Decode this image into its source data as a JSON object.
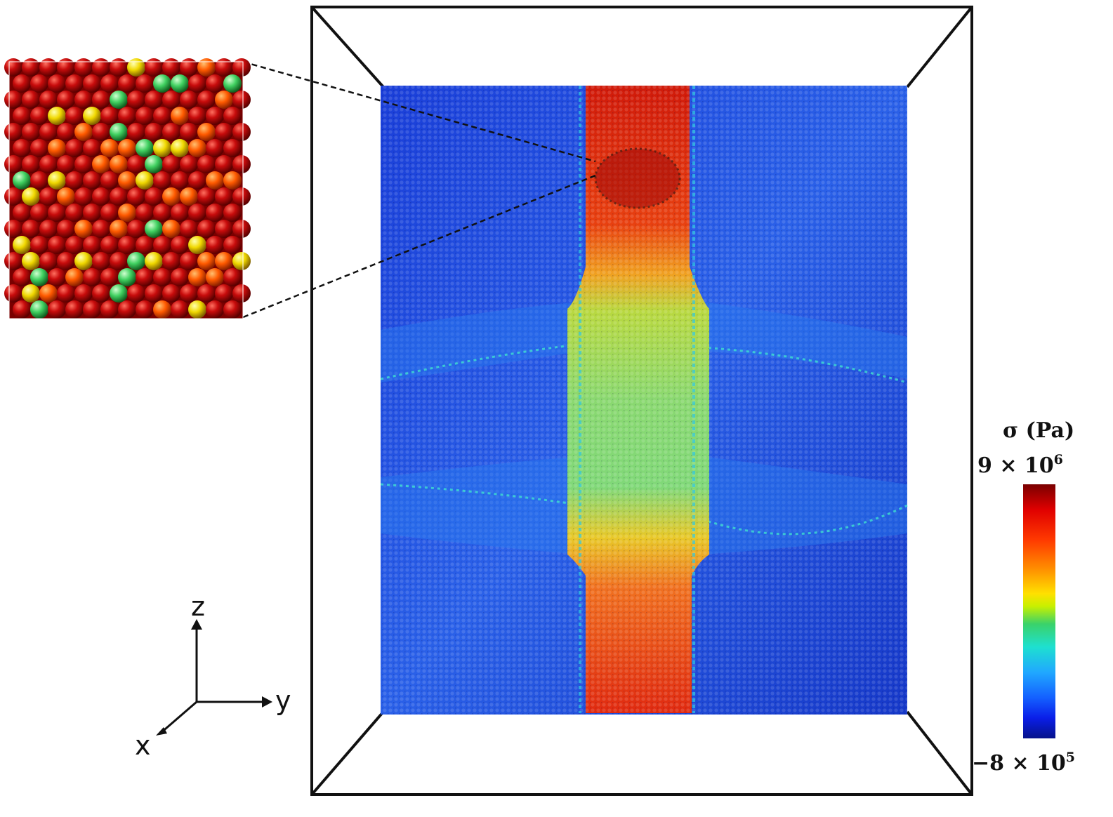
{
  "figure": {
    "colorbar": {
      "title": "σ (Pa)",
      "max_mantissa": "9 × 10",
      "max_exponent": "6",
      "min_mantissa": "−8 × 10",
      "min_exponent": "5",
      "colors": [
        "#06128a",
        "#0a1ee8",
        "#1460ff",
        "#20a8ff",
        "#1ee0d0",
        "#3ad26a",
        "#ffe000",
        "#ff8c00",
        "#ff3a00",
        "#e00000",
        "#7a0000"
      ]
    },
    "axes": {
      "z": "z",
      "y": "y",
      "x": "x"
    },
    "particle_colors": {
      "background_blue": "#1a44d8",
      "hot_red": "#d81a0a",
      "mid_green": "#7ad870"
    }
  }
}
